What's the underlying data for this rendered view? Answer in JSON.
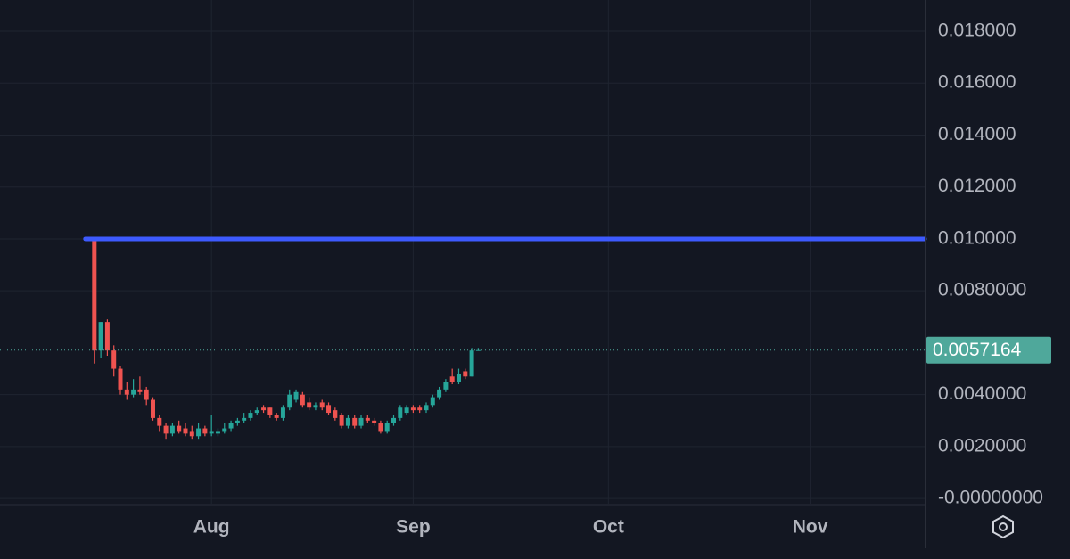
{
  "chart_data": {
    "type": "candlestick",
    "x": [
      -18,
      -17,
      -16,
      -15,
      -14,
      -13,
      -12,
      -11,
      -10,
      -9,
      -8,
      -7,
      -6,
      -5,
      -4,
      -3,
      -2,
      -1,
      0,
      1,
      2,
      3,
      4,
      5,
      6,
      7,
      8,
      9,
      10,
      11,
      12,
      13,
      14,
      15,
      16,
      17,
      18,
      19,
      20,
      21,
      22,
      23,
      24,
      25,
      26,
      27,
      28,
      29,
      30,
      31,
      32,
      33,
      34,
      35,
      36,
      37,
      38,
      39,
      40,
      41
    ],
    "open": [
      0.01,
      0.0057,
      0.0068,
      0.0057,
      0.005,
      0.0042,
      0.004,
      0.0042,
      0.0042,
      0.0038,
      0.0031,
      0.0028,
      0.0025,
      0.0028,
      0.0027,
      0.0026,
      0.0024,
      0.0027,
      0.0025,
      0.0025,
      0.0026,
      0.0027,
      0.0029,
      0.003,
      0.0031,
      0.0033,
      0.0035,
      0.0035,
      0.0032,
      0.0031,
      0.0035,
      0.0038,
      0.004,
      0.0037,
      0.0035,
      0.0037,
      0.0036,
      0.0034,
      0.0032,
      0.0028,
      0.0031,
      0.0028,
      0.0031,
      0.003,
      0.0029,
      0.0026,
      0.0029,
      0.0031,
      0.0033,
      0.0035,
      0.0035,
      0.0034,
      0.0036,
      0.0039,
      0.0042,
      0.0047,
      0.0045,
      0.0049,
      0.0047,
      0.0057
    ],
    "high": [
      0.01,
      0.0068,
      0.0069,
      0.0059,
      0.0051,
      0.0045,
      0.0046,
      0.0047,
      0.0043,
      0.0039,
      0.0032,
      0.0029,
      0.0029,
      0.003,
      0.0029,
      0.0028,
      0.0029,
      0.0028,
      0.0032,
      0.0027,
      0.0029,
      0.003,
      0.0031,
      0.0033,
      0.0034,
      0.0035,
      0.0036,
      0.0035,
      0.0033,
      0.0036,
      0.0042,
      0.0042,
      0.0041,
      0.0039,
      0.0037,
      0.0038,
      0.0037,
      0.0035,
      0.0033,
      0.0032,
      0.0032,
      0.0032,
      0.0032,
      0.0031,
      0.003,
      0.003,
      0.0032,
      0.0036,
      0.0036,
      0.0036,
      0.0036,
      0.0037,
      0.004,
      0.0043,
      0.0046,
      0.005,
      0.005,
      0.005,
      0.0058,
      0.0058
    ],
    "low": [
      0.0052,
      0.0054,
      0.0055,
      0.0047,
      0.004,
      0.0038,
      0.0039,
      0.004,
      0.0036,
      0.003,
      0.0026,
      0.0023,
      0.0024,
      0.0025,
      0.0024,
      0.0023,
      0.0023,
      0.0024,
      0.0024,
      0.0024,
      0.0025,
      0.0026,
      0.0028,
      0.0029,
      0.003,
      0.0032,
      0.0033,
      0.0031,
      0.003,
      0.003,
      0.0034,
      0.0037,
      0.0035,
      0.0034,
      0.0034,
      0.0034,
      0.0032,
      0.003,
      0.0027,
      0.0027,
      0.0027,
      0.0027,
      0.0029,
      0.0028,
      0.0025,
      0.0025,
      0.0028,
      0.003,
      0.0032,
      0.0033,
      0.0033,
      0.0033,
      0.0035,
      0.0038,
      0.0041,
      0.0044,
      0.0044,
      0.0046,
      0.0047,
      0.0057
    ],
    "close": [
      0.0057,
      0.0068,
      0.0057,
      0.005,
      0.0042,
      0.004,
      0.0042,
      0.0041,
      0.0038,
      0.0031,
      0.0028,
      0.0025,
      0.0028,
      0.0026,
      0.0025,
      0.0024,
      0.0027,
      0.0025,
      0.0026,
      0.0026,
      0.0027,
      0.0029,
      0.003,
      0.0031,
      0.0033,
      0.0034,
      0.0034,
      0.0032,
      0.0031,
      0.0035,
      0.004,
      0.0041,
      0.0036,
      0.0035,
      0.0036,
      0.0035,
      0.0033,
      0.0031,
      0.0028,
      0.0031,
      0.0028,
      0.0031,
      0.003,
      0.0029,
      0.0026,
      0.0029,
      0.0031,
      0.0035,
      0.0035,
      0.0034,
      0.0034,
      0.0036,
      0.0039,
      0.0042,
      0.0045,
      0.0045,
      0.0048,
      0.0047,
      0.0057,
      0.0057164
    ],
    "up_color": "#26a69a",
    "down_color": "#ef5350",
    "hline": {
      "value": 0.01,
      "color": "#3d5afe"
    },
    "last_price": {
      "value": 0.0057164,
      "color": "#4fa89b"
    },
    "xlim": [
      -32.5,
      109.6
    ],
    "xticks": [
      {
        "value": 0,
        "label": "Aug"
      },
      {
        "value": 31,
        "label": "Sep"
      },
      {
        "value": 61,
        "label": "Oct"
      },
      {
        "value": 92,
        "label": "Nov"
      }
    ],
    "ylim": [
      -0.0002,
      0.0192
    ],
    "yticks": [
      {
        "value": 0,
        "label": "-0.00000000"
      },
      {
        "value": 0.002,
        "label": "0.0020000"
      },
      {
        "value": 0.004,
        "label": "0.0040000"
      },
      {
        "value": 0.008,
        "label": "0.0080000"
      },
      {
        "value": 0.01,
        "label": "0.010000"
      },
      {
        "value": 0.012,
        "label": "0.012000"
      },
      {
        "value": 0.014,
        "label": "0.014000"
      },
      {
        "value": 0.016,
        "label": "0.016000"
      },
      {
        "value": 0.018,
        "label": "0.018000"
      }
    ],
    "grid": true
  }
}
